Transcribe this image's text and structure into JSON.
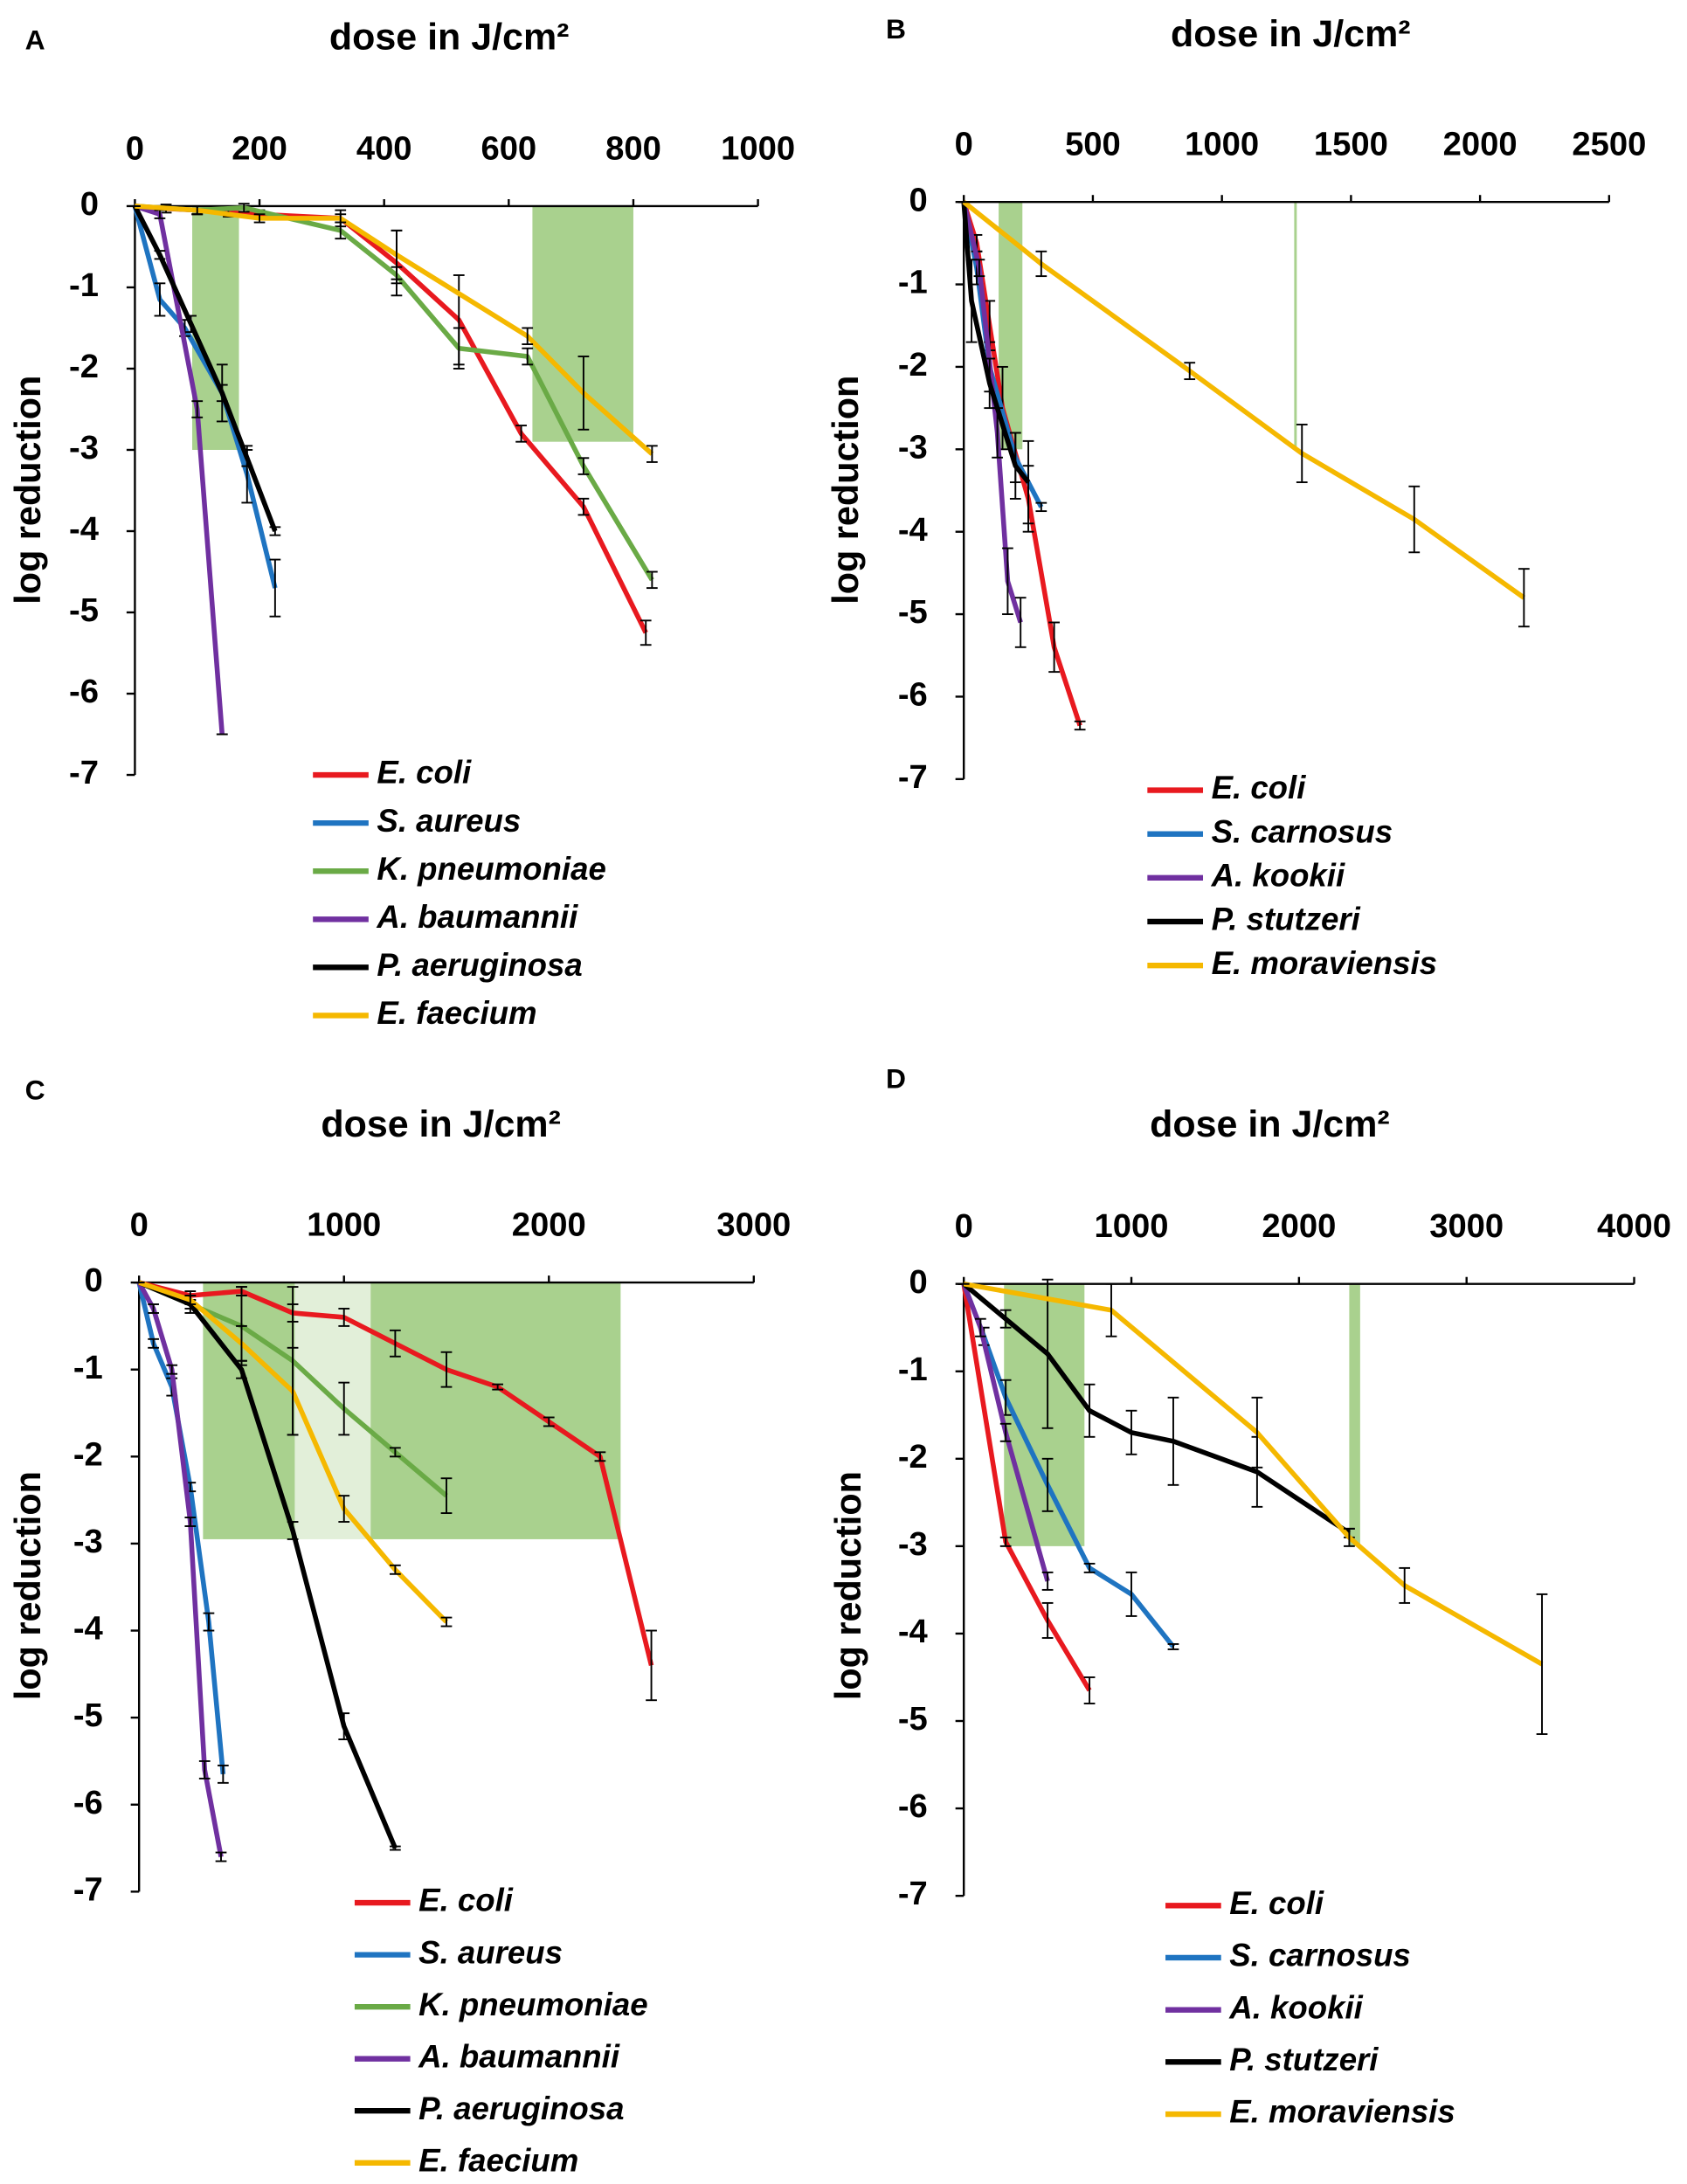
{
  "chart_data": [
    {
      "type": "line",
      "panel": "A",
      "title": "dose in J/cm²",
      "ylabel": "log reduction",
      "xlim": [
        0,
        1000
      ],
      "xticks": [
        0,
        200,
        400,
        600,
        800,
        1000
      ],
      "ylim": [
        -7,
        0
      ],
      "yticks": [
        0,
        -1,
        -2,
        -3,
        -4,
        -5,
        -6,
        -7
      ],
      "shaded_regions": [
        {
          "x": [
            92,
            167
          ],
          "y": [
            -3,
            0
          ],
          "color": "#a9d18e"
        },
        {
          "x": [
            638,
            800
          ],
          "y": [
            -2.9,
            0
          ],
          "color": "#a9d18e"
        }
      ],
      "series": [
        {
          "name": "E. coli",
          "color": "#e8191f",
          "x": [
            0,
            50,
            100,
            150,
            200,
            330,
            420,
            520,
            620,
            720,
            820
          ],
          "values": [
            0,
            -0.03,
            -0.05,
            -0.08,
            -0.1,
            -0.15,
            -0.7,
            -1.4,
            -2.8,
            -3.7,
            -5.25
          ],
          "errors": [
            0,
            0.05,
            0.05,
            0.05,
            0.05,
            0.1,
            0.4,
            0.55,
            0.1,
            0.1,
            0.15
          ]
        },
        {
          "name": "S. aureus",
          "color": "#1f74c1",
          "x": [
            0,
            40,
            80,
            140,
            180,
            225
          ],
          "values": [
            0,
            -1.15,
            -1.5,
            -2.3,
            -3.3,
            -4.7
          ],
          "errors": [
            0,
            0.2,
            0.1,
            0.35,
            0.35,
            0.35
          ]
        },
        {
          "name": "K. pneumoniae",
          "color": "#6aaa46",
          "x": [
            0,
            100,
            175,
            330,
            420,
            520,
            630,
            720,
            830
          ],
          "values": [
            0,
            -0.05,
            -0.02,
            -0.3,
            -0.85,
            -1.75,
            -1.85,
            -3.2,
            -4.6
          ],
          "errors": [
            0,
            0.05,
            0.05,
            0.1,
            0.1,
            0.25,
            0.1,
            0.1,
            0.1
          ]
        },
        {
          "name": "A. baumannii",
          "color": "#7030a0",
          "x": [
            0,
            40,
            100,
            140
          ],
          "values": [
            0,
            -0.1,
            -2.5,
            -6.5
          ],
          "errors": [
            0,
            0.05,
            0.1,
            0
          ]
        },
        {
          "name": "P. aeruginosa",
          "color": "#000000",
          "x": [
            0,
            40,
            90,
            140,
            180,
            225
          ],
          "values": [
            0,
            -0.6,
            -1.45,
            -2.3,
            -3.1,
            -4.0
          ],
          "errors": [
            0,
            0.05,
            0.1,
            0.1,
            0.1,
            0.05
          ]
        },
        {
          "name": "E. faecium",
          "color": "#f5b800",
          "x": [
            0,
            100,
            200,
            330,
            420,
            630,
            720,
            830
          ],
          "values": [
            0,
            -0.05,
            -0.15,
            -0.15,
            -0.6,
            -1.6,
            -2.3,
            -3.05
          ],
          "errors": [
            0,
            0.05,
            0.05,
            0.05,
            0.3,
            0.1,
            0.45,
            0.1
          ]
        }
      ]
    },
    {
      "type": "line",
      "panel": "B",
      "title": "dose in J/cm²",
      "ylabel": "log reduction",
      "xlim": [
        0,
        2500
      ],
      "xticks": [
        0,
        500,
        1000,
        1500,
        2000,
        2500
      ],
      "ylim": [
        -7,
        0
      ],
      "yticks": [
        0,
        -1,
        -2,
        -3,
        -4,
        -5,
        -6,
        -7
      ],
      "shaded_regions": [
        {
          "x": [
            135,
            227
          ],
          "y": [
            -3,
            0
          ],
          "color": "#a9d18e"
        },
        {
          "x": [
            1280,
            1290
          ],
          "y": [
            -3,
            0
          ],
          "color": "#a9d18e"
        }
      ],
      "series": [
        {
          "name": "E. coli",
          "color": "#e8191f",
          "x": [
            0,
            50,
            100,
            150,
            250,
            350,
            450
          ],
          "values": [
            0,
            -0.5,
            -1.5,
            -2.5,
            -3.6,
            -5.4,
            -6.35
          ],
          "errors": [
            0,
            0.1,
            0.3,
            0.5,
            0.4,
            0.3,
            0.05
          ]
        },
        {
          "name": "S. carnosus",
          "color": "#1f74c1",
          "x": [
            0,
            50,
            100,
            200,
            300
          ],
          "values": [
            0,
            -0.8,
            -2,
            -3.1,
            -3.7
          ],
          "errors": [
            0,
            0.2,
            0.3,
            0.3,
            0.05
          ]
        },
        {
          "name": "A. kookii",
          "color": "#7030a0",
          "x": [
            0,
            60,
            130,
            170,
            220
          ],
          "values": [
            0,
            -0.8,
            -2.8,
            -4.6,
            -5.1
          ],
          "errors": [
            0,
            0.1,
            0.3,
            0.4,
            0.3
          ]
        },
        {
          "name": "P. stutzeri",
          "color": "#000000",
          "x": [
            0,
            30,
            100,
            200,
            250
          ],
          "values": [
            0,
            -1.2,
            -2.2,
            -3.2,
            -3.4
          ],
          "errors": [
            0,
            0.5,
            0.3,
            0.4,
            0.5
          ]
        },
        {
          "name": "E. moraviensis",
          "color": "#f5b800",
          "x": [
            0,
            300,
            875,
            1310,
            1745,
            2170
          ],
          "values": [
            0,
            -0.75,
            -2.05,
            -3.05,
            -3.85,
            -4.8
          ],
          "errors": [
            0,
            0.15,
            0.1,
            0.35,
            0.4,
            0.35
          ]
        }
      ]
    },
    {
      "type": "line",
      "panel": "C",
      "title": "dose in J/cm²",
      "ylabel": "log reduction",
      "xlim": [
        0,
        3000
      ],
      "xticks": [
        0,
        1000,
        2000,
        3000
      ],
      "ylim": [
        -7,
        0
      ],
      "yticks": [
        0,
        -1,
        -2,
        -3,
        -4,
        -5,
        -6,
        -7
      ],
      "shaded_regions": [
        {
          "x": [
            312,
            760
          ],
          "y": [
            -2.95,
            0
          ],
          "color": "#a9d18e"
        },
        {
          "x": [
            760,
            1130
          ],
          "y": [
            -2.95,
            0
          ],
          "color": "#e2efd9"
        },
        {
          "x": [
            1130,
            2350
          ],
          "y": [
            -2.95,
            0
          ],
          "color": "#a9d18e"
        }
      ],
      "series": [
        {
          "name": "E. coli",
          "color": "#e8191f",
          "x": [
            0,
            250,
            500,
            750,
            1000,
            1250,
            1500,
            1750,
            2000,
            2250,
            2500
          ],
          "values": [
            0,
            -0.15,
            -0.1,
            -0.35,
            -0.4,
            -0.7,
            -1.0,
            -1.2,
            -1.6,
            -2.0,
            -4.4
          ],
          "errors": [
            0,
            0.05,
            0.05,
            0.1,
            0.1,
            0.15,
            0.2,
            0.03,
            0.05,
            0.05,
            0.4
          ]
        },
        {
          "name": "S. aureus",
          "color": "#1f74c1",
          "x": [
            0,
            70,
            160,
            250,
            340,
            410
          ],
          "values": [
            0,
            -0.7,
            -1.2,
            -2.35,
            -3.9,
            -5.65
          ],
          "errors": [
            0,
            0.05,
            0.1,
            0.05,
            0.1,
            0.1
          ]
        },
        {
          "name": "K. pneumoniae",
          "color": "#6aaa46",
          "x": [
            0,
            250,
            500,
            750,
            1000,
            1250,
            1500
          ],
          "values": [
            0,
            -0.25,
            -0.5,
            -0.9,
            -1.45,
            -1.95,
            -2.45
          ],
          "errors": [
            0,
            0.1,
            0.45,
            0.85,
            0.3,
            0.05,
            0.2
          ]
        },
        {
          "name": "A. baumannii",
          "color": "#7030a0",
          "x": [
            0,
            70,
            160,
            250,
            320,
            400
          ],
          "values": [
            0,
            -0.3,
            -1.0,
            -2.75,
            -5.6,
            -6.6
          ],
          "errors": [
            0,
            0.05,
            0.05,
            0.05,
            0.1,
            0.05
          ]
        },
        {
          "name": "P. aeruginosa",
          "color": "#000000",
          "x": [
            0,
            250,
            500,
            750,
            1000,
            1250
          ],
          "values": [
            0,
            -0.25,
            -1.0,
            -2.85,
            -5.1,
            -6.5
          ],
          "errors": [
            0,
            0.05,
            0.1,
            0.1,
            0.15,
            0.02
          ]
        },
        {
          "name": "E. faecium",
          "color": "#f5b800",
          "x": [
            0,
            250,
            500,
            750,
            1000,
            1250,
            1500
          ],
          "values": [
            0,
            -0.2,
            -0.7,
            -1.25,
            -2.6,
            -3.3,
            -3.9
          ],
          "errors": [
            0,
            0.05,
            0.2,
            0.5,
            0.15,
            0.05,
            0.05
          ]
        }
      ]
    },
    {
      "type": "line",
      "panel": "D",
      "title": "dose in J/cm²",
      "ylabel": "log reduction",
      "xlim": [
        0,
        4000
      ],
      "xticks": [
        0,
        1000,
        2000,
        3000,
        4000
      ],
      "ylim": [
        -7,
        0
      ],
      "yticks": [
        0,
        -1,
        -2,
        -3,
        -4,
        -5,
        -6,
        -7
      ],
      "shaded_regions": [
        {
          "x": [
            240,
            720
          ],
          "y": [
            -3,
            0
          ],
          "color": "#a9d18e"
        },
        {
          "x": [
            2300,
            2365
          ],
          "y": [
            -3,
            0
          ],
          "color": "#a9d18e"
        }
      ],
      "series": [
        {
          "name": "E. coli",
          "color": "#e8191f",
          "x": [
            0,
            250,
            500,
            750
          ],
          "values": [
            0,
            -2.95,
            -3.85,
            -4.65
          ],
          "errors": [
            0,
            0.05,
            0.2,
            0.15
          ]
        },
        {
          "name": "S. carnosus",
          "color": "#1f74c1",
          "x": [
            0,
            120,
            250,
            500,
            750,
            1000,
            1250
          ],
          "values": [
            0,
            -0.6,
            -1.3,
            -2.3,
            -3.25,
            -3.55,
            -4.15
          ],
          "errors": [
            0,
            0.1,
            0.2,
            0.3,
            0.05,
            0.25,
            0.03
          ]
        },
        {
          "name": "A. kookii",
          "color": "#7030a0",
          "x": [
            0,
            100,
            250,
            500
          ],
          "values": [
            0,
            -0.5,
            -1.7,
            -3.4
          ],
          "errors": [
            0,
            0.1,
            0.1,
            0.1
          ]
        },
        {
          "name": "P. stutzeri",
          "color": "#000000",
          "x": [
            0,
            250,
            500,
            750,
            1000,
            1250,
            1750,
            2300
          ],
          "values": [
            0,
            -0.4,
            -0.8,
            -1.45,
            -1.7,
            -1.8,
            -2.15,
            -2.85
          ],
          "errors": [
            0,
            0.1,
            0.85,
            0.3,
            0.25,
            0.5,
            0.4,
            0.05
          ]
        },
        {
          "name": "E. moraviensis",
          "color": "#f5b800",
          "x": [
            0,
            880,
            1750,
            2300,
            2630,
            3450
          ],
          "values": [
            0,
            -0.3,
            -1.7,
            -2.9,
            -3.45,
            -4.35
          ],
          "errors": [
            0,
            0.3,
            0.4,
            0.1,
            0.2,
            0.8
          ]
        }
      ]
    }
  ]
}
